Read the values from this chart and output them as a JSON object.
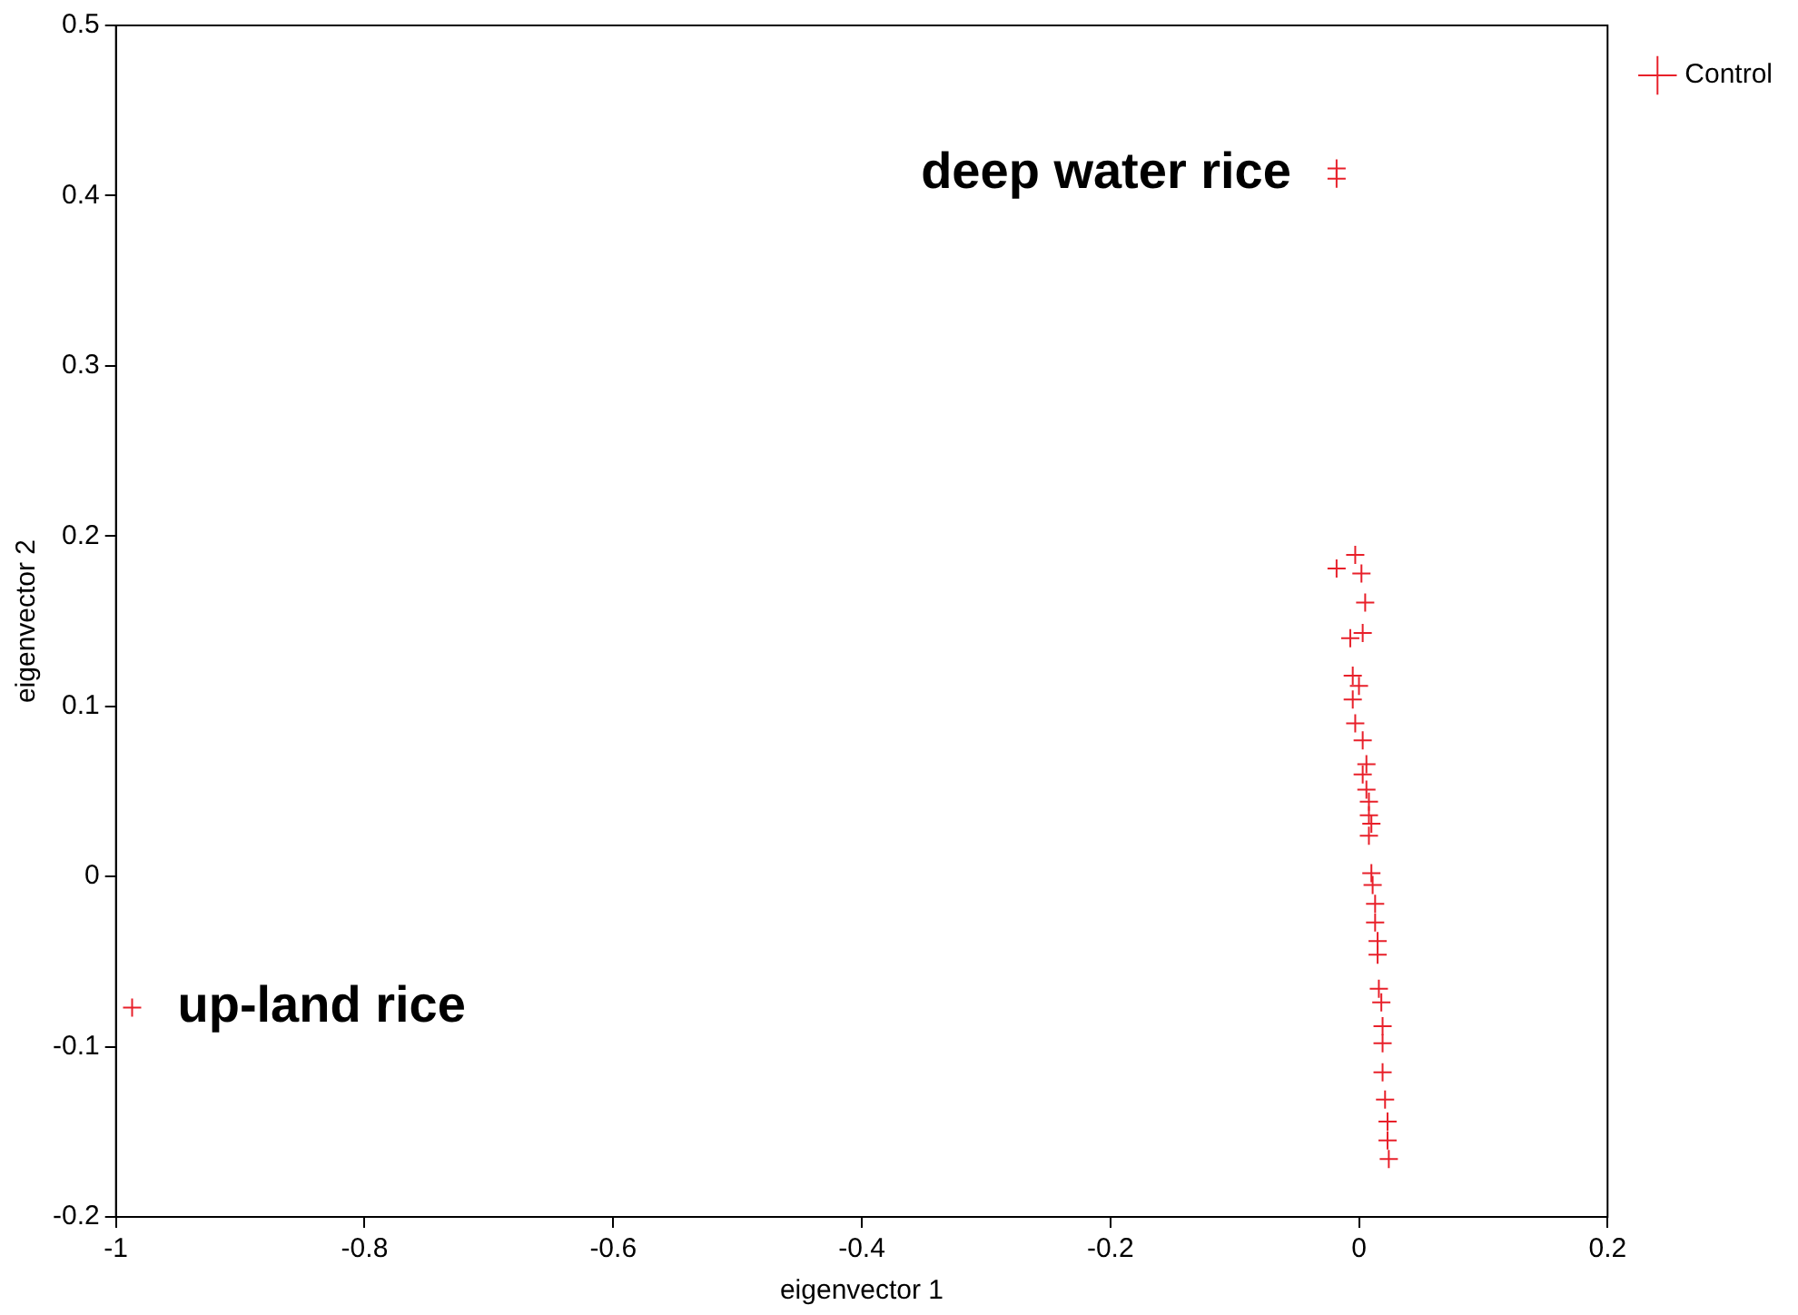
{
  "chart_data": {
    "type": "scatter",
    "xlabel": "eigenvector 1",
    "ylabel": "eigenvector 2",
    "xlim": [
      -1,
      0.2
    ],
    "xticks": [
      -1,
      -0.8,
      -0.6,
      -0.4,
      -0.2,
      0,
      0.2
    ],
    "ylim": [
      -0.2,
      0.5
    ],
    "yticks": [
      -0.2,
      -0.1,
      0,
      0.1,
      0.2,
      0.3,
      0.4,
      0.5
    ],
    "grid": false,
    "legend": "top right",
    "marker": "cross",
    "annotations": [
      {
        "text": "deep water rice",
        "x": -0.018,
        "y": 0.413
      },
      {
        "text": "up-land rice",
        "x": -0.987,
        "y": -0.077
      }
    ],
    "series": [
      {
        "name": "Control",
        "color": "#e8202a",
        "x": [
          -0.018,
          -0.018,
          -0.987,
          -0.003,
          -0.018,
          0.002,
          0.005,
          0.003,
          -0.007,
          -0.005,
          0,
          -0.005,
          -0.003,
          0.003,
          0.006,
          0.003,
          0.006,
          0.008,
          0.008,
          0.01,
          0.008,
          0.01,
          0.011,
          0.013,
          0.013,
          0.015,
          0.015,
          0.016,
          0.018,
          0.019,
          0.019,
          0.019,
          0.021,
          0.023,
          0.023,
          0.024
        ],
        "values": [
          0.416,
          0.41,
          -0.077,
          0.189,
          0.181,
          0.178,
          0.161,
          0.143,
          0.14,
          0.118,
          0.112,
          0.104,
          0.09,
          0.08,
          0.066,
          0.06,
          0.051,
          0.044,
          0.036,
          0.031,
          0.024,
          0.002,
          -0.005,
          -0.016,
          -0.027,
          -0.038,
          -0.046,
          -0.066,
          -0.074,
          -0.088,
          -0.098,
          -0.115,
          -0.131,
          -0.144,
          -0.155,
          -0.166
        ]
      }
    ]
  }
}
